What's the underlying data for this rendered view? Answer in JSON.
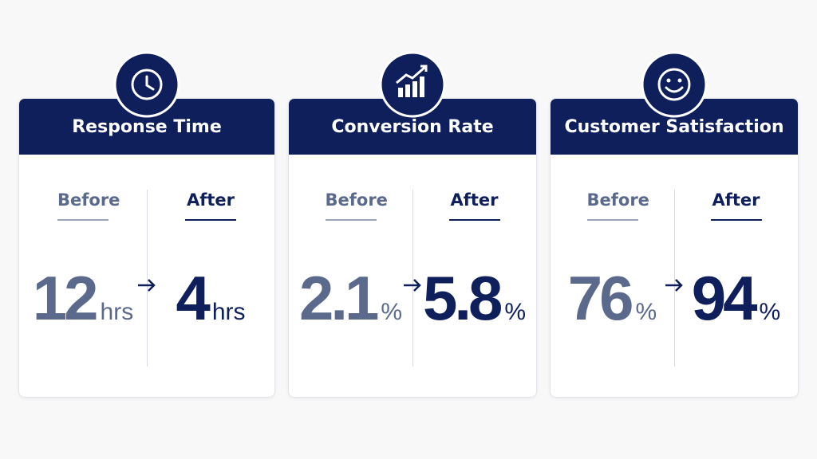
{
  "cards": [
    {
      "title": "Response Time",
      "before_label": "Before",
      "after_label": "After",
      "before_value": 12,
      "before_unit": "hrs",
      "after_value": 4,
      "after_unit": "hrs"
    },
    {
      "title": "Conversion Rate",
      "before_label": "Before",
      "after_label": "After",
      "before_value": 2.1,
      "before_unit": "%",
      "after_value": 5.8,
      "after_unit": "%"
    },
    {
      "title": "Customer Satisfaction",
      "before_label": "Before",
      "after_label": "After",
      "before_value": 76,
      "before_unit": "%",
      "after_value": 94,
      "after_unit": "%"
    }
  ]
}
